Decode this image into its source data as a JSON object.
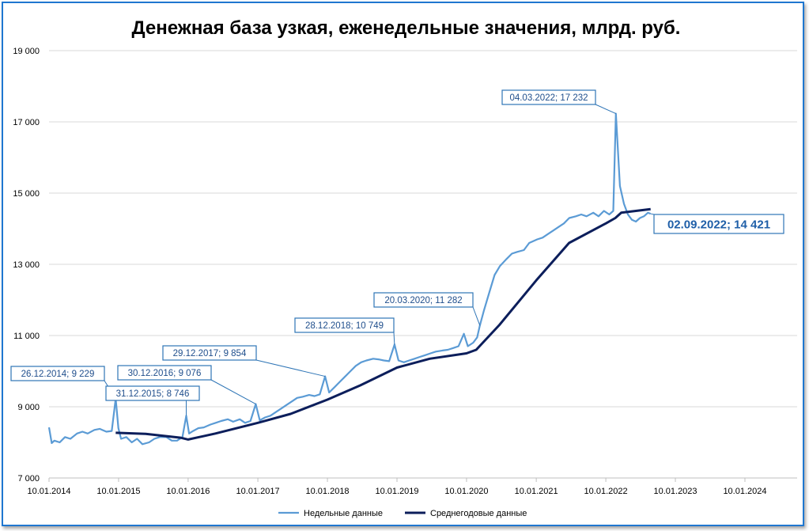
{
  "chart_data": {
    "type": "line",
    "title": "Денежная база узкая, еженедельные значения, млрд. руб.",
    "ylim": [
      7000,
      19000
    ],
    "yticks": [
      7000,
      9000,
      11000,
      13000,
      15000,
      17000,
      19000
    ],
    "ytick_labels": [
      "7 000",
      "9 000",
      "11 000",
      "13 000",
      "15 000",
      "17 000",
      "19 000"
    ],
    "xlim": [
      "2014-01-10",
      "2024-10-10"
    ],
    "xtick_labels": [
      "10.01.2014",
      "10.01.2015",
      "10.01.2016",
      "10.01.2017",
      "10.01.2018",
      "10.01.2019",
      "10.01.2020",
      "10.01.2021",
      "10.01.2022",
      "10.01.2023",
      "10.01.2024"
    ],
    "grid": "horizontal",
    "legend_position": "bottom",
    "colors": {
      "weekly": "#5b9bd5",
      "avg": "#0c1e5b",
      "annotation": "#2e75b6",
      "grid": "#d9d9d9"
    },
    "series": [
      {
        "name": "Недельные данные",
        "points": [
          [
            "2014-01-10",
            8420
          ],
          [
            "2014-01-24",
            7980
          ],
          [
            "2014-02-07",
            8050
          ],
          [
            "2014-03-07",
            8000
          ],
          [
            "2014-04-04",
            8150
          ],
          [
            "2014-05-02",
            8100
          ],
          [
            "2014-06-06",
            8250
          ],
          [
            "2014-07-04",
            8300
          ],
          [
            "2014-08-01",
            8250
          ],
          [
            "2014-09-05",
            8350
          ],
          [
            "2014-10-03",
            8380
          ],
          [
            "2014-11-07",
            8300
          ],
          [
            "2014-12-05",
            8320
          ],
          [
            "2014-12-26",
            9229
          ],
          [
            "2015-01-09",
            8400
          ],
          [
            "2015-01-23",
            8100
          ],
          [
            "2015-02-20",
            8150
          ],
          [
            "2015-03-20",
            8000
          ],
          [
            "2015-04-17",
            8100
          ],
          [
            "2015-05-15",
            7950
          ],
          [
            "2015-06-19",
            8000
          ],
          [
            "2015-07-17",
            8100
          ],
          [
            "2015-08-14",
            8150
          ],
          [
            "2015-09-18",
            8150
          ],
          [
            "2015-10-16",
            8050
          ],
          [
            "2015-11-13",
            8050
          ],
          [
            "2015-12-11",
            8150
          ],
          [
            "2015-12-31",
            8746
          ],
          [
            "2016-01-15",
            8250
          ],
          [
            "2016-02-05",
            8320
          ],
          [
            "2016-03-04",
            8400
          ],
          [
            "2016-04-01",
            8420
          ],
          [
            "2016-05-06",
            8500
          ],
          [
            "2016-06-03",
            8550
          ],
          [
            "2016-07-01",
            8600
          ],
          [
            "2016-08-05",
            8650
          ],
          [
            "2016-09-02",
            8580
          ],
          [
            "2016-10-07",
            8650
          ],
          [
            "2016-11-04",
            8550
          ],
          [
            "2016-12-02",
            8600
          ],
          [
            "2016-12-30",
            9076
          ],
          [
            "2017-01-20",
            8620
          ],
          [
            "2017-02-17",
            8700
          ],
          [
            "2017-03-17",
            8750
          ],
          [
            "2017-04-14",
            8850
          ],
          [
            "2017-05-12",
            8950
          ],
          [
            "2017-06-09",
            9050
          ],
          [
            "2017-07-07",
            9150
          ],
          [
            "2017-08-04",
            9250
          ],
          [
            "2017-09-01",
            9280
          ],
          [
            "2017-10-06",
            9330
          ],
          [
            "2017-11-03",
            9300
          ],
          [
            "2017-12-01",
            9350
          ],
          [
            "2017-12-29",
            9854
          ],
          [
            "2018-01-19",
            9400
          ],
          [
            "2018-02-16",
            9550
          ],
          [
            "2018-03-16",
            9700
          ],
          [
            "2018-04-13",
            9850
          ],
          [
            "2018-05-11",
            10000
          ],
          [
            "2018-06-08",
            10150
          ],
          [
            "2018-07-06",
            10250
          ],
          [
            "2018-08-03",
            10300
          ],
          [
            "2018-09-07",
            10350
          ],
          [
            "2018-10-05",
            10330
          ],
          [
            "2018-11-02",
            10300
          ],
          [
            "2018-11-30",
            10280
          ],
          [
            "2018-12-28",
            10749
          ],
          [
            "2019-01-18",
            10300
          ],
          [
            "2019-02-15",
            10250
          ],
          [
            "2019-03-15",
            10300
          ],
          [
            "2019-04-12",
            10350
          ],
          [
            "2019-05-10",
            10400
          ],
          [
            "2019-06-07",
            10450
          ],
          [
            "2019-07-05",
            10500
          ],
          [
            "2019-08-02",
            10550
          ],
          [
            "2019-09-06",
            10580
          ],
          [
            "2019-10-04",
            10600
          ],
          [
            "2019-11-01",
            10650
          ],
          [
            "2019-11-29",
            10700
          ],
          [
            "2019-12-27",
            11050
          ],
          [
            "2020-01-17",
            10700
          ],
          [
            "2020-02-14",
            10800
          ],
          [
            "2020-03-06",
            10950
          ],
          [
            "2020-03-20",
            11282
          ],
          [
            "2020-04-10",
            11700
          ],
          [
            "2020-05-08",
            12200
          ],
          [
            "2020-06-05",
            12700
          ],
          [
            "2020-07-03",
            12950
          ],
          [
            "2020-08-07",
            13150
          ],
          [
            "2020-09-04",
            13300
          ],
          [
            "2020-10-02",
            13350
          ],
          [
            "2020-11-06",
            13400
          ],
          [
            "2020-12-04",
            13600
          ],
          [
            "2021-01-15",
            13700
          ],
          [
            "2021-02-12",
            13750
          ],
          [
            "2021-03-12",
            13850
          ],
          [
            "2021-04-09",
            13950
          ],
          [
            "2021-05-07",
            14050
          ],
          [
            "2021-06-04",
            14150
          ],
          [
            "2021-07-02",
            14300
          ],
          [
            "2021-08-06",
            14350
          ],
          [
            "2021-09-03",
            14400
          ],
          [
            "2021-10-01",
            14350
          ],
          [
            "2021-11-05",
            14450
          ],
          [
            "2021-12-03",
            14350
          ],
          [
            "2021-12-31",
            14500
          ],
          [
            "2022-01-28",
            14400
          ],
          [
            "2022-02-18",
            14500
          ],
          [
            "2022-03-04",
            17232
          ],
          [
            "2022-03-25",
            15200
          ],
          [
            "2022-04-15",
            14700
          ],
          [
            "2022-05-06",
            14400
          ],
          [
            "2022-05-27",
            14250
          ],
          [
            "2022-06-17",
            14200
          ],
          [
            "2022-07-08",
            14300
          ],
          [
            "2022-07-29",
            14350
          ],
          [
            "2022-08-19",
            14450
          ],
          [
            "2022-09-02",
            14421
          ]
        ]
      },
      {
        "name": "Среднегодовые данные",
        "points": [
          [
            "2014-12-26",
            8270
          ],
          [
            "2015-06-01",
            8240
          ],
          [
            "2015-12-01",
            8130
          ],
          [
            "2016-01-10",
            8080
          ],
          [
            "2016-06-01",
            8250
          ],
          [
            "2017-01-10",
            8550
          ],
          [
            "2017-07-01",
            8800
          ],
          [
            "2018-01-10",
            9200
          ],
          [
            "2018-07-01",
            9600
          ],
          [
            "2019-01-10",
            10100
          ],
          [
            "2019-07-01",
            10350
          ],
          [
            "2020-01-10",
            10500
          ],
          [
            "2020-03-01",
            10600
          ],
          [
            "2020-07-01",
            11300
          ],
          [
            "2021-01-10",
            12550
          ],
          [
            "2021-07-01",
            13600
          ],
          [
            "2022-01-10",
            14150
          ],
          [
            "2022-03-01",
            14300
          ],
          [
            "2022-04-01",
            14450
          ],
          [
            "2022-09-02",
            14550
          ]
        ]
      }
    ],
    "annotations": [
      {
        "text": "26.12.2014; 9 229",
        "x": "2014-12-26",
        "y": 9229
      },
      {
        "text": "31.12.2015; 8 746",
        "x": "2015-12-31",
        "y": 8746
      },
      {
        "text": "30.12.2016; 9 076",
        "x": "2016-12-30",
        "y": 9076
      },
      {
        "text": "29.12.2017; 9 854",
        "x": "2017-12-29",
        "y": 9854
      },
      {
        "text": "28.12.2018; 10 749",
        "x": "2018-12-28",
        "y": 10749
      },
      {
        "text": "20.03.2020; 11 282",
        "x": "2020-03-20",
        "y": 11282
      },
      {
        "text": "04.03.2022; 17 232",
        "x": "2022-03-04",
        "y": 17232
      },
      {
        "text": "02.09.2022; 14 421",
        "x": "2022-09-02",
        "y": 14421,
        "emphasis": true
      }
    ]
  }
}
